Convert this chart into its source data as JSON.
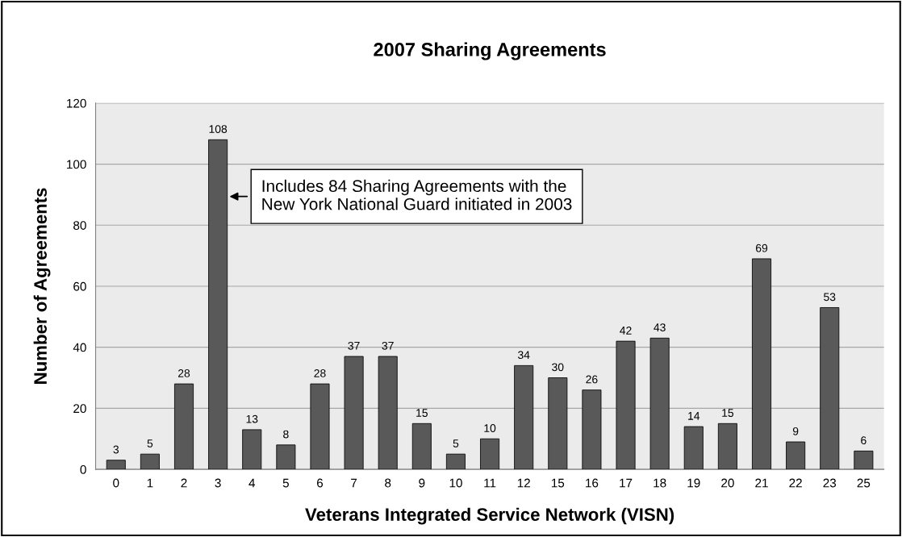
{
  "chart_data": {
    "type": "bar",
    "title": "2007 Sharing Agreements",
    "xlabel": "Veterans Integrated Service Network (VISN)",
    "ylabel": "Number of Agreements",
    "categories": [
      "0",
      "1",
      "2",
      "3",
      "4",
      "5",
      "6",
      "7",
      "8",
      "9",
      "10",
      "11",
      "12",
      "15",
      "16",
      "17",
      "18",
      "19",
      "20",
      "21",
      "22",
      "23",
      "25"
    ],
    "values": [
      3,
      5,
      28,
      108,
      13,
      8,
      28,
      37,
      37,
      15,
      5,
      10,
      34,
      30,
      26,
      42,
      43,
      14,
      15,
      69,
      9,
      53,
      6
    ],
    "color": "#595959",
    "ylim": [
      0,
      120
    ],
    "yticks": [
      0,
      20,
      40,
      60,
      80,
      100,
      120
    ],
    "grid": "y",
    "data_labels": true,
    "annotations": [
      "Includes 84 Sharing Agreements with the\nNew York National Guard initiated in 2003"
    ]
  }
}
